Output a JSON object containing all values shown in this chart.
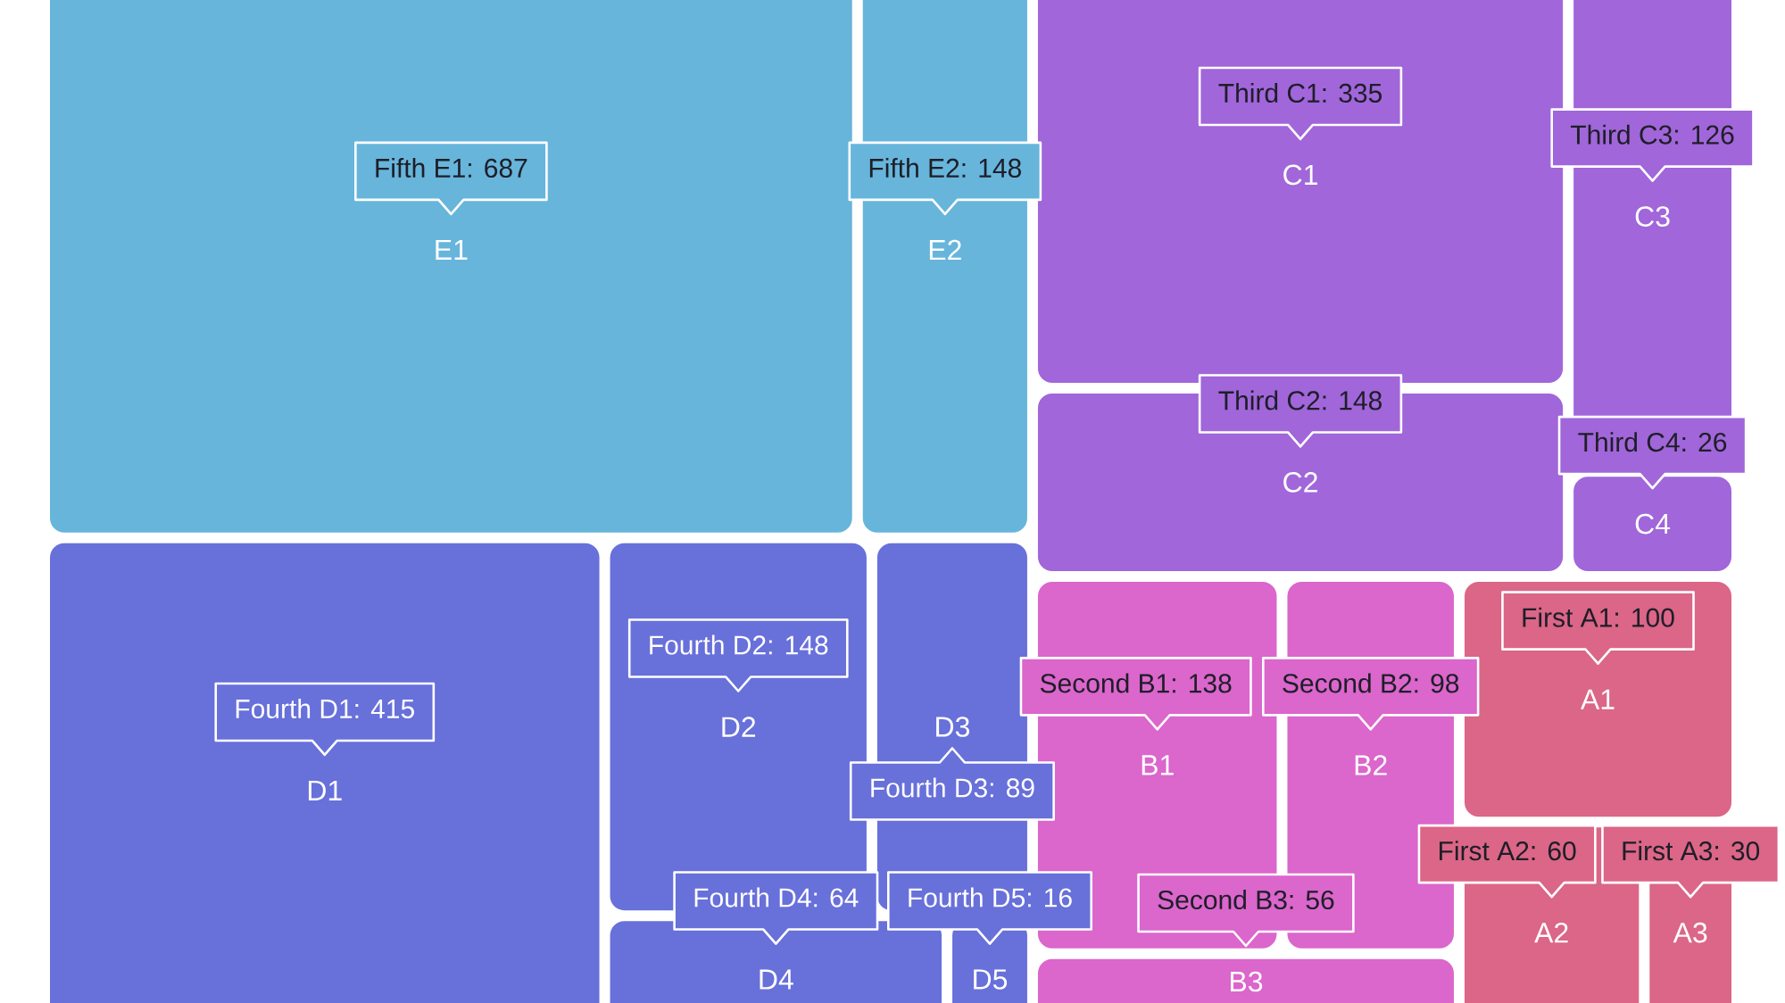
{
  "chart_data": {
    "type": "other",
    "categories": [
      "E1",
      "E2",
      "D1",
      "D2",
      "D3",
      "D4",
      "D5",
      "C1",
      "C2",
      "C3",
      "C4",
      "B1",
      "B2",
      "B3",
      "A1",
      "A2",
      "A3"
    ],
    "series": [
      {
        "color": "#67b5db",
        "values": [
          687,
          148,
          null,
          null,
          null,
          null,
          null,
          null,
          null,
          null,
          null,
          null,
          null,
          null,
          null,
          null,
          null
        ],
        "value_labels": [
          "Fifth E1: 687",
          "Fifth E2: 148",
          null,
          null,
          null,
          null,
          null,
          null,
          null,
          null,
          null,
          null,
          null,
          null,
          null,
          null,
          null
        ]
      },
      {
        "color": "#6870da",
        "values": [
          null,
          null,
          415,
          148,
          89,
          64,
          16,
          null,
          null,
          null,
          null,
          null,
          null,
          null,
          null,
          null,
          null
        ],
        "value_labels": [
          null,
          null,
          "Fourth D1: 415",
          "Fourth D2: 148",
          "Fourth D3: 89",
          "Fourth D4: 64",
          "Fourth D5: 16",
          null,
          null,
          null,
          null,
          null,
          null,
          null,
          null,
          null,
          null
        ]
      },
      {
        "color": "#a166da",
        "values": [
          null,
          null,
          null,
          null,
          null,
          null,
          null,
          335,
          148,
          126,
          26,
          null,
          null,
          null,
          null,
          null,
          null
        ],
        "value_labels": [
          null,
          null,
          null,
          null,
          null,
          null,
          null,
          "Third C1: 335",
          "Third C2: 148",
          "Third C3: 126",
          "Third C4: 26",
          null,
          null,
          null,
          null,
          null,
          null
        ]
      },
      {
        "color": "#db66cc",
        "values": [
          null,
          null,
          null,
          null,
          null,
          null,
          null,
          null,
          null,
          null,
          null,
          138,
          98,
          56,
          null,
          null,
          null
        ],
        "value_labels": [
          null,
          null,
          null,
          null,
          null,
          null,
          null,
          null,
          null,
          null,
          null,
          "Second B1: 138",
          "Second B2: 98",
          "Second B3: 56",
          null,
          null,
          null
        ]
      },
      {
        "color": "#db6687",
        "values": [
          null,
          null,
          null,
          null,
          null,
          null,
          null,
          null,
          null,
          null,
          null,
          null,
          null,
          null,
          100,
          60,
          30
        ],
        "value_labels": [
          null,
          null,
          null,
          null,
          null,
          null,
          null,
          null,
          null,
          null,
          null,
          null,
          null,
          null,
          "First A1: 100",
          "First A2: 60",
          "First A3: 30"
        ]
      }
    ]
  }
}
